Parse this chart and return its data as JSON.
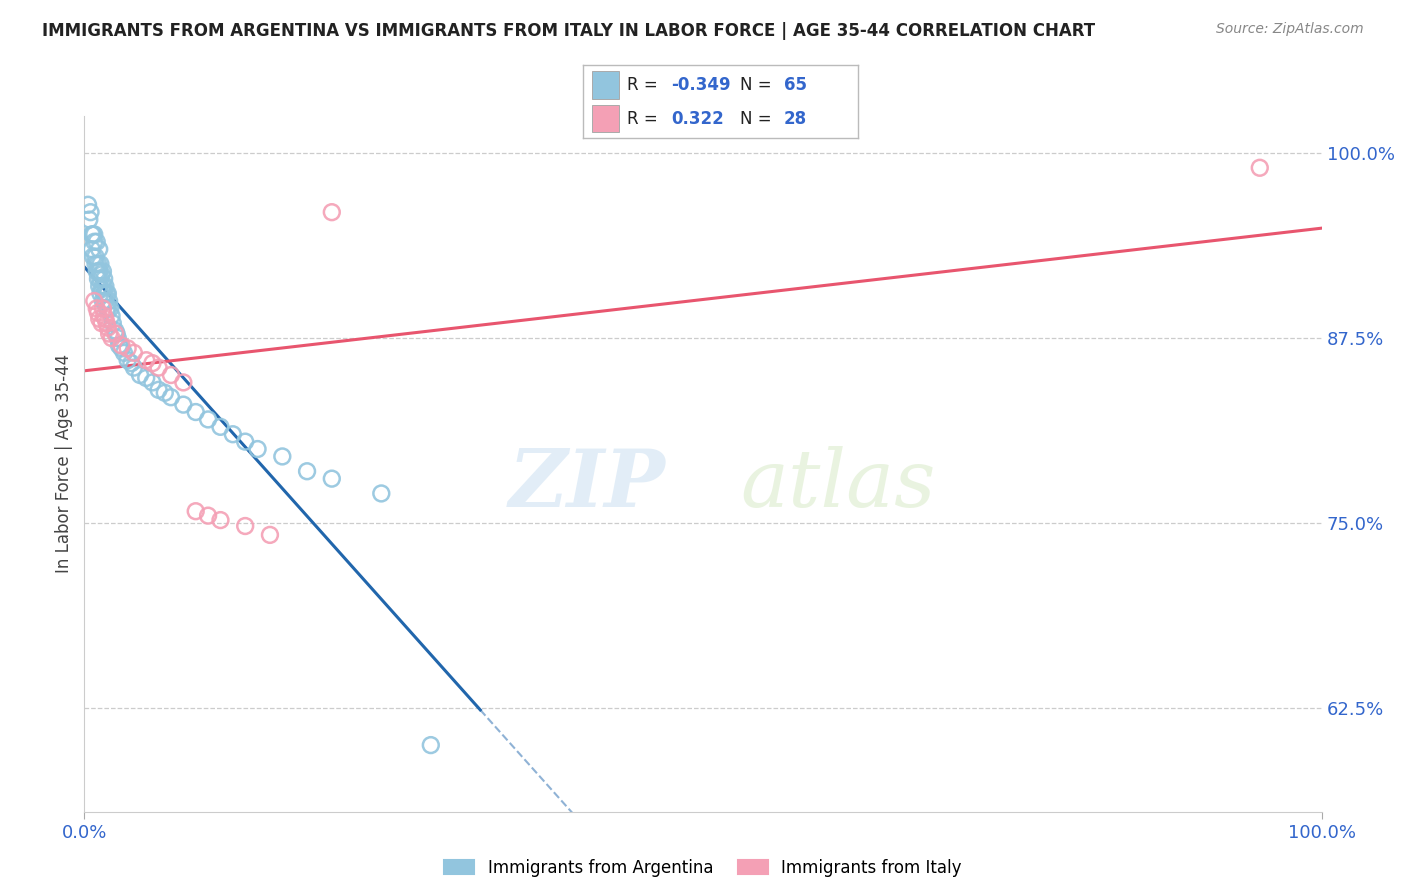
{
  "title": "IMMIGRANTS FROM ARGENTINA VS IMMIGRANTS FROM ITALY IN LABOR FORCE | AGE 35-44 CORRELATION CHART",
  "source": "Source: ZipAtlas.com",
  "ylabel": "In Labor Force | Age 35-44",
  "ytick_labels": [
    "62.5%",
    "75.0%",
    "87.5%",
    "100.0%"
  ],
  "ytick_values": [
    0.625,
    0.75,
    0.875,
    1.0
  ],
  "xlim": [
    0.0,
    1.0
  ],
  "ylim": [
    0.555,
    1.025
  ],
  "legend_r_argentina": "-0.349",
  "legend_n_argentina": "65",
  "legend_r_italy": "0.322",
  "legend_n_italy": "28",
  "color_argentina": "#92c5de",
  "color_italy": "#f4a0b5",
  "trendline_argentina_color": "#2166ac",
  "trendline_italy_color": "#e8556e",
  "watermark_zip": "ZIP",
  "watermark_atlas": "atlas",
  "argentina_x": [
    0.003,
    0.004,
    0.005,
    0.006,
    0.006,
    0.007,
    0.007,
    0.008,
    0.008,
    0.009,
    0.009,
    0.01,
    0.01,
    0.011,
    0.011,
    0.012,
    0.012,
    0.012,
    0.013,
    0.013,
    0.013,
    0.014,
    0.014,
    0.015,
    0.015,
    0.015,
    0.016,
    0.016,
    0.017,
    0.017,
    0.018,
    0.018,
    0.019,
    0.019,
    0.02,
    0.021,
    0.022,
    0.023,
    0.025,
    0.026,
    0.027,
    0.028,
    0.03,
    0.032,
    0.035,
    0.038,
    0.04,
    0.045,
    0.05,
    0.055,
    0.06,
    0.065,
    0.07,
    0.08,
    0.09,
    0.1,
    0.11,
    0.12,
    0.13,
    0.14,
    0.16,
    0.18,
    0.2,
    0.24,
    0.28
  ],
  "argentina_y": [
    0.965,
    0.955,
    0.96,
    0.945,
    0.935,
    0.945,
    0.93,
    0.94,
    0.945,
    0.93,
    0.925,
    0.94,
    0.92,
    0.925,
    0.915,
    0.935,
    0.92,
    0.91,
    0.925,
    0.915,
    0.905,
    0.918,
    0.908,
    0.92,
    0.91,
    0.9,
    0.915,
    0.905,
    0.91,
    0.9,
    0.905,
    0.895,
    0.905,
    0.895,
    0.9,
    0.895,
    0.89,
    0.885,
    0.88,
    0.878,
    0.875,
    0.87,
    0.868,
    0.865,
    0.86,
    0.858,
    0.855,
    0.85,
    0.848,
    0.845,
    0.84,
    0.838,
    0.835,
    0.83,
    0.825,
    0.82,
    0.815,
    0.81,
    0.805,
    0.8,
    0.795,
    0.785,
    0.78,
    0.77,
    0.6
  ],
  "italy_x": [
    0.008,
    0.01,
    0.011,
    0.012,
    0.014,
    0.015,
    0.016,
    0.017,
    0.018,
    0.019,
    0.02,
    0.022,
    0.025,
    0.03,
    0.035,
    0.04,
    0.05,
    0.055,
    0.06,
    0.07,
    0.08,
    0.09,
    0.1,
    0.11,
    0.13,
    0.15,
    0.2,
    0.95
  ],
  "italy_y": [
    0.9,
    0.895,
    0.892,
    0.888,
    0.885,
    0.895,
    0.89,
    0.888,
    0.885,
    0.882,
    0.878,
    0.875,
    0.878,
    0.87,
    0.868,
    0.865,
    0.86,
    0.858,
    0.855,
    0.85,
    0.845,
    0.758,
    0.755,
    0.752,
    0.748,
    0.742,
    0.96,
    0.99
  ],
  "background_color": "#ffffff",
  "grid_color": "#cccccc"
}
